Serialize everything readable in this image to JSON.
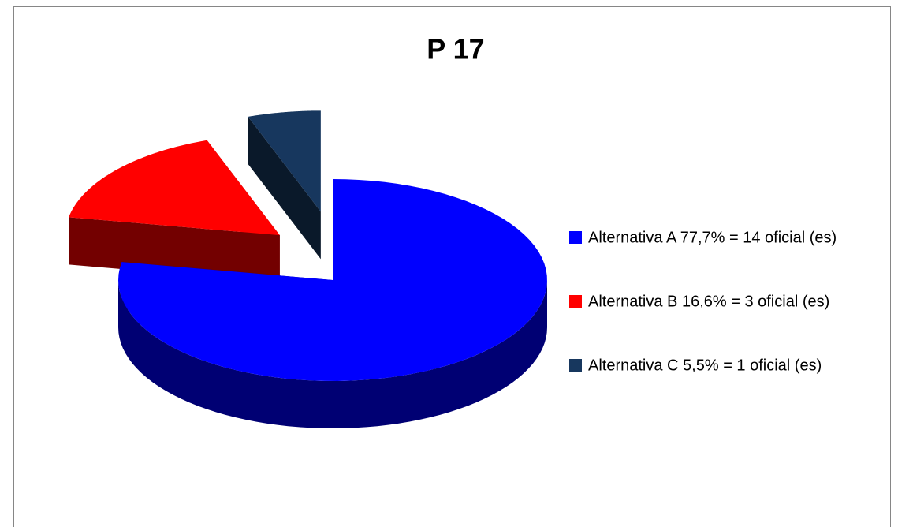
{
  "chart_data": {
    "type": "pie3d",
    "title": "P 17",
    "categories": [
      "Alternativa A 77,7% = 14 oficial (es)",
      "Alternativa B 16,6% = 3 oficial (es)",
      "Alternativa C 5,5% = 1 oficial (es)"
    ],
    "values": [
      77.7,
      16.6,
      5.5
    ],
    "colors": [
      "#0000ff",
      "#ff0000",
      "#17375e"
    ],
    "legend": "right"
  }
}
